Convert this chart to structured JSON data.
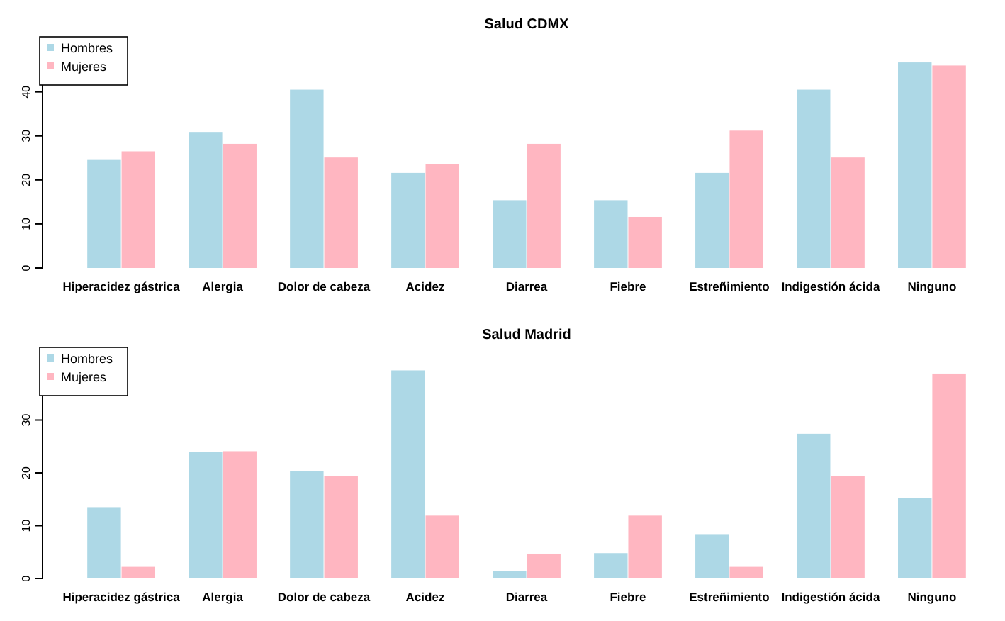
{
  "chart_data": [
    {
      "type": "bar",
      "title": "Salud CDMX",
      "categories": [
        "Hiperacidez gástrica",
        "Alergia",
        "Dolor de cabeza",
        "Acidez",
        "Diarrea",
        "Fiebre",
        "Estreñimiento",
        "Indigestión ácida",
        "Ninguno"
      ],
      "series": [
        {
          "name": "Hombres",
          "color": "#add8e6",
          "values": [
            24.7,
            30.9,
            40.5,
            21.6,
            15.4,
            15.4,
            21.6,
            40.5,
            46.7
          ]
        },
        {
          "name": "Mujeres",
          "color": "#ffb6c1",
          "values": [
            26.5,
            28.2,
            25.1,
            23.6,
            28.2,
            11.6,
            31.2,
            25.1,
            46
          ]
        }
      ],
      "ylim": [
        0,
        48
      ],
      "yticks": [
        0,
        10,
        20,
        30,
        40
      ],
      "legend": "top left",
      "grid": false
    },
    {
      "type": "bar",
      "title": "Salud Madrid",
      "categories": [
        "Hiperacidez gástrica",
        "Alergia",
        "Dolor de cabeza",
        "Acidez",
        "Diarrea",
        "Fiebre",
        "Estreñimiento",
        "Indigestión ácida",
        "Ninguno"
      ],
      "series": [
        {
          "name": "Hombres",
          "color": "#add8e6",
          "values": [
            13.5,
            23.9,
            20.4,
            39.4,
            1.4,
            4.8,
            8.4,
            27.4,
            15.3
          ]
        },
        {
          "name": "Mujeres",
          "color": "#ffb6c1",
          "values": [
            2.2,
            24.1,
            19.4,
            11.9,
            4.7,
            11.9,
            2.2,
            19.4,
            38.8
          ]
        }
      ],
      "ylim": [
        0,
        40
      ],
      "yticks": [
        0,
        10,
        20,
        30
      ],
      "legend": "top left",
      "grid": false
    }
  ]
}
